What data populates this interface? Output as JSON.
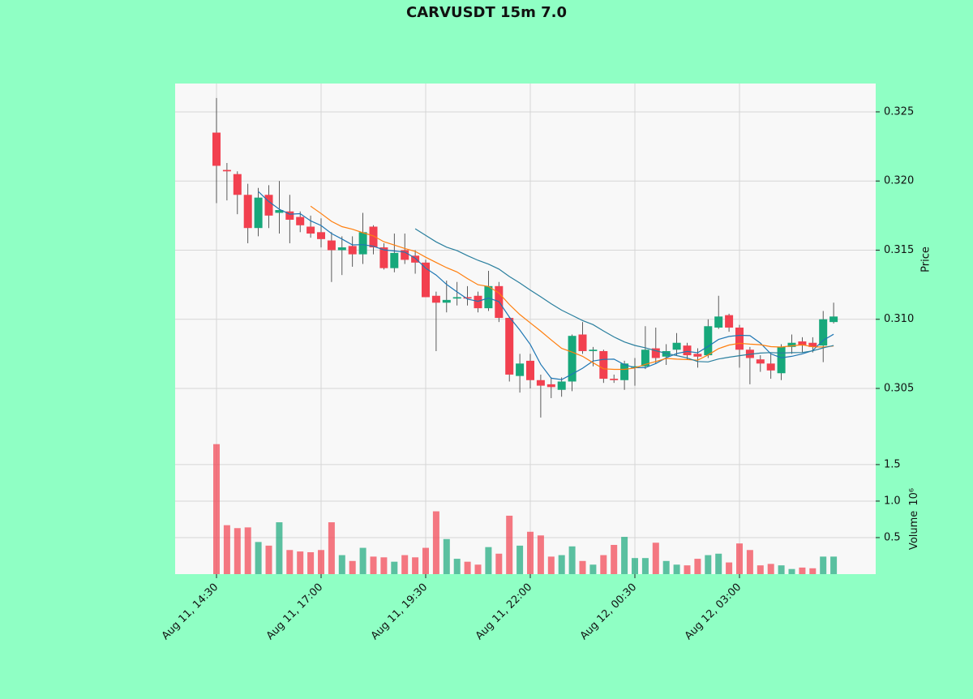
{
  "chart_data": {
    "type": "candlestick",
    "title": "CARVUSDT 15m 7.0",
    "ylabel": "Price",
    "y2label": "Volume",
    "y2_scale_label": "10⁶",
    "categories": [
      "Aug 11, 14:30",
      null,
      null,
      null,
      null,
      null,
      null,
      null,
      null,
      null,
      "Aug 11, 17:00",
      null,
      null,
      null,
      null,
      null,
      null,
      null,
      null,
      null,
      "Aug 11, 19:30",
      null,
      null,
      null,
      null,
      null,
      null,
      null,
      null,
      null,
      "Aug 11, 22:00",
      null,
      null,
      null,
      null,
      null,
      null,
      null,
      null,
      null,
      "Aug 12, 00:30",
      null,
      null,
      null,
      null,
      null,
      null,
      null,
      null,
      null,
      "Aug 12, 03:00",
      null,
      null,
      null,
      null,
      null,
      null,
      null,
      null,
      null
    ],
    "open": [
      0.3235,
      0.3208,
      0.3205,
      0.319,
      0.3166,
      0.319,
      0.3177,
      0.3178,
      0.3174,
      0.3167,
      0.3163,
      0.3157,
      0.315,
      0.3153,
      0.3147,
      0.3167,
      0.3152,
      0.3137,
      0.315,
      0.3146,
      0.3141,
      0.3117,
      0.3112,
      0.3115,
      0.3116,
      0.3117,
      0.3108,
      0.3124,
      0.3101,
      0.3059,
      0.307,
      0.3056,
      0.3053,
      0.3049,
      0.3055,
      0.3089,
      0.3077,
      0.3077,
      0.3057,
      0.3056,
      0.3065,
      0.3066,
      0.3079,
      0.3073,
      0.3078,
      0.3081,
      0.3075,
      0.3074,
      0.3094,
      0.3103,
      0.3094,
      0.3078,
      0.3071,
      0.3068,
      0.3061,
      0.308,
      0.3084,
      0.3083,
      0.3081,
      0.3098
    ],
    "high": [
      0.326,
      0.3213,
      0.3207,
      0.3198,
      0.3195,
      0.3197,
      0.32,
      0.319,
      0.3178,
      0.3175,
      0.3173,
      0.3163,
      0.316,
      0.316,
      0.3177,
      0.3168,
      0.3155,
      0.3162,
      0.3162,
      0.315,
      0.3143,
      0.312,
      0.3128,
      0.3127,
      0.3124,
      0.312,
      0.3135,
      0.3127,
      0.3102,
      0.3075,
      0.3075,
      0.306,
      0.3058,
      0.3058,
      0.3089,
      0.3098,
      0.308,
      0.3078,
      0.306,
      0.307,
      0.3072,
      0.3095,
      0.3094,
      0.3082,
      0.309,
      0.3083,
      0.3079,
      0.31,
      0.3117,
      0.3104,
      0.3096,
      0.308,
      0.3074,
      0.3075,
      0.3082,
      0.3089,
      0.3087,
      0.3087,
      0.3106,
      0.3112
    ],
    "low": [
      0.3184,
      0.3186,
      0.3176,
      0.3155,
      0.316,
      0.3166,
      0.3162,
      0.3155,
      0.3163,
      0.3159,
      0.3152,
      0.3127,
      0.3132,
      0.3138,
      0.314,
      0.3147,
      0.3136,
      0.3134,
      0.314,
      0.3133,
      0.3116,
      0.3077,
      0.3105,
      0.311,
      0.311,
      0.3105,
      0.3106,
      0.3098,
      0.3055,
      0.3047,
      0.305,
      0.3029,
      0.3043,
      0.3044,
      0.3048,
      0.3075,
      0.3066,
      0.3054,
      0.3054,
      0.3049,
      0.3052,
      0.3064,
      0.3068,
      0.3067,
      0.3074,
      0.3071,
      0.3065,
      0.3072,
      0.3093,
      0.3091,
      0.3065,
      0.3053,
      0.3062,
      0.3057,
      0.3056,
      0.3075,
      0.3076,
      0.3076,
      0.3069,
      0.3097
    ],
    "close": [
      0.3211,
      0.3207,
      0.319,
      0.3166,
      0.3188,
      0.3175,
      0.3179,
      0.3172,
      0.3168,
      0.3162,
      0.3158,
      0.315,
      0.3152,
      0.3147,
      0.3163,
      0.3152,
      0.3137,
      0.3148,
      0.3143,
      0.3141,
      0.3116,
      0.3112,
      0.3114,
      0.3116,
      0.3115,
      0.3108,
      0.3124,
      0.3101,
      0.306,
      0.3068,
      0.3056,
      0.3052,
      0.3051,
      0.3055,
      0.3088,
      0.3077,
      0.3078,
      0.3057,
      0.3056,
      0.3068,
      0.3066,
      0.3078,
      0.3072,
      0.3077,
      0.3083,
      0.3074,
      0.3073,
      0.3095,
      0.3102,
      0.3094,
      0.3078,
      0.3072,
      0.3068,
      0.3063,
      0.308,
      0.3083,
      0.3081,
      0.308,
      0.31,
      0.3102
    ],
    "volume": [
      1.78,
      0.67,
      0.63,
      0.64,
      0.44,
      0.39,
      0.71,
      0.33,
      0.31,
      0.3,
      0.33,
      0.71,
      0.26,
      0.18,
      0.36,
      0.24,
      0.23,
      0.17,
      0.26,
      0.23,
      0.36,
      0.86,
      0.48,
      0.21,
      0.17,
      0.13,
      0.37,
      0.28,
      0.8,
      0.39,
      0.58,
      0.53,
      0.24,
      0.26,
      0.38,
      0.18,
      0.13,
      0.26,
      0.4,
      0.51,
      0.22,
      0.22,
      0.43,
      0.18,
      0.13,
      0.12,
      0.21,
      0.26,
      0.28,
      0.16,
      0.42,
      0.33,
      0.12,
      0.14,
      0.12,
      0.07,
      0.09,
      0.08,
      0.24,
      0.24
    ],
    "up_color": "#17a87b",
    "down_color": "#f2404f",
    "overlays": [
      {
        "color": "#1f77b4",
        "values": [
          null,
          null,
          null,
          null,
          0.31924,
          0.31852,
          0.31796,
          0.3176,
          0.31764,
          0.31712,
          0.31678,
          0.3162,
          0.3158,
          0.31538,
          0.3154,
          0.31528,
          0.31502,
          0.31494,
          0.31486,
          0.31442,
          0.3137,
          0.3132,
          0.31252,
          0.31198,
          0.31146,
          0.3113,
          0.31154,
          0.31128,
          0.31016,
          0.30922,
          0.30818,
          0.30674,
          0.30574,
          0.30564,
          0.30604,
          0.30646,
          0.30698,
          0.3071,
          0.30712,
          0.30672,
          0.3065,
          0.3065,
          0.3068,
          0.30722,
          0.30752,
          0.30768,
          0.30758,
          0.30804,
          0.30854,
          0.30876,
          0.30884,
          0.30882,
          0.30828,
          0.3075,
          0.30722,
          0.30732,
          0.3075,
          0.30774,
          0.30848,
          0.30892
        ]
      },
      {
        "color": "#ff7f0e",
        "values": [
          null,
          null,
          null,
          null,
          null,
          null,
          null,
          null,
          null,
          0.31818,
          0.31765,
          0.31708,
          0.3167,
          0.31651,
          0.31626,
          0.31603,
          0.31561,
          0.31537,
          0.31512,
          0.31491,
          0.31449,
          0.31411,
          0.31373,
          0.31342,
          0.31294,
          0.3125,
          0.31237,
          0.3119,
          0.31107,
          0.31034,
          0.30974,
          0.30914,
          0.30851,
          0.3079,
          0.30763,
          0.30732,
          0.30686,
          0.30642,
          0.30638,
          0.30638,
          0.30648,
          0.30674,
          0.30695,
          0.30717,
          0.30712,
          0.30709,
          0.30704,
          0.30742,
          0.30788,
          0.30814,
          0.30826,
          0.3082,
          0.30816,
          0.30802,
          0.30799,
          0.30808,
          0.30816,
          0.30801,
          0.30799,
          0.30807
        ]
      },
      {
        "color": "#2a7f9e",
        "values": [
          null,
          null,
          null,
          null,
          null,
          null,
          null,
          null,
          null,
          null,
          null,
          null,
          null,
          null,
          null,
          null,
          null,
          null,
          null,
          0.316545,
          0.31607,
          0.315595,
          0.315215,
          0.314965,
          0.3146,
          0.314265,
          0.31399,
          0.313635,
          0.313095,
          0.312625,
          0.312115,
          0.311625,
          0.31112,
          0.31066,
          0.310285,
          0.30991,
          0.309615,
          0.30916,
          0.308725,
          0.30836,
          0.30811,
          0.30794,
          0.30773,
          0.307535,
          0.307375,
          0.307205,
          0.30695,
          0.30692,
          0.30713,
          0.30726,
          0.30737,
          0.30747,
          0.307555,
          0.307595,
          0.307555,
          0.307585,
          0.3076,
          0.307715,
          0.307935,
          0.308105
        ]
      }
    ],
    "ylim": [
      0.30113,
      0.32705
    ],
    "yticks": [
      0.305,
      {
        "value": 0.31,
        "label": "0.310"
      },
      0.315,
      {
        "value": 0.32,
        "label": "0.320"
      },
      0.325
    ],
    "y2lim": [
      0,
      1.81
    ],
    "y2ticks": [
      0.5,
      {
        "value": 1,
        "label": "1.0"
      },
      1.5
    ],
    "grid": true
  }
}
